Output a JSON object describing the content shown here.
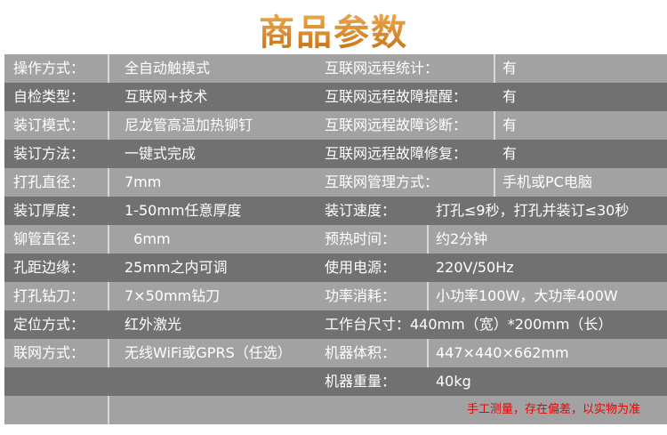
{
  "title": "商品参数",
  "rows": [
    {
      "l1": "操作方式：",
      "v1": "全自动触摸式",
      "l2": "互联网远程统计：",
      "v2": "有"
    },
    {
      "l1": "自检类型：",
      "v1": "互联网+技术",
      "l2": "互联网远程故障提醒：",
      "v2": "有"
    },
    {
      "l1": "装订模式：",
      "v1": "尼龙管高温加热铆钉",
      "l2": "互联网远程故障诊断：",
      "v2": "有"
    },
    {
      "l1": "装订方法：",
      "v1": "一键式完成",
      "l2": "互联网远程故障修复：",
      "v2": "有"
    },
    {
      "l1": "打孔直径：",
      "v1": "7mm",
      "l2": "互联网管理方式：",
      "v2": "手机或PC电脑"
    },
    {
      "l1": "装订厚度：",
      "v1": "1-50mm任意厚度",
      "l2": "装订速度：",
      "v2": "打孔≤9秒，打孔并装订≤30秒"
    },
    {
      "l1": "铆管直径：",
      "v1": "  6mm",
      "l2": "预热时间：",
      "v2": "约2分钟"
    },
    {
      "l1": "孔距边缘：",
      "v1": "25mm之内可调",
      "l2": "使用电源：",
      "v2": "220V/50Hz"
    },
    {
      "l1": "打孔钻刀：",
      "v1": "7×50mm钻刀",
      "l2": "功率消耗：",
      "v2": "小功率100W，大功率400W"
    },
    {
      "l1": "定位方式：",
      "v1": "红外激光",
      "l2": "工作台尺寸：440mm（宽）*200mm（长）",
      "v2": ""
    },
    {
      "l1": "联网方式：",
      "v1": "无线WiFi或GPRS（任选）",
      "l2": "机器体积：",
      "v2": "447×440×662mm"
    },
    {
      "l1": "",
      "v1": "",
      "l2": "机器重量：",
      "v2": "40kg"
    }
  ],
  "note": "手工测量，存在偏差，以实物为准",
  "colors": {
    "light_row": "#a2a2a2",
    "dark_row": "#717171",
    "note": "#ee0000",
    "title": "#d98a2a"
  }
}
